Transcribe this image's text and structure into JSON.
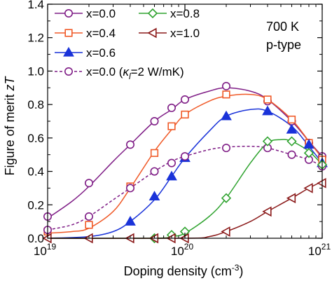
{
  "chart_data": {
    "type": "line",
    "xlabel": "Doping density (cm",
    "xlabel_sup": "-3",
    "xlabel_close": ")",
    "ylabel": "Figure of merit ",
    "ylabel_italic": "zT",
    "x_scale": "log",
    "xlim": [
      1e+19,
      1e+21
    ],
    "ylim": [
      0,
      1.4
    ],
    "x_ticks": [
      {
        "value": 1e+19,
        "base": "10",
        "exp": "19"
      },
      {
        "value": 1e+20,
        "base": "10",
        "exp": "20"
      },
      {
        "value": 1e+21,
        "base": "10",
        "exp": "21"
      }
    ],
    "y_ticks": [
      {
        "value": 0.0,
        "label": "0.0"
      },
      {
        "value": 0.2,
        "label": "0.2"
      },
      {
        "value": 0.4,
        "label": "0.4"
      },
      {
        "value": 0.6,
        "label": "0.6"
      },
      {
        "value": 0.8,
        "label": "0.8"
      },
      {
        "value": 1.0,
        "label": "1.0"
      },
      {
        "value": 1.2,
        "label": "1.2"
      },
      {
        "value": 1.4,
        "label": "1.4"
      }
    ],
    "grid": false,
    "legend_position": "top-left",
    "annotations": [
      "700 K",
      "p-type"
    ],
    "series": [
      {
        "name": "x=0.0",
        "color": "#7f1d86",
        "marker": "circle",
        "filled": false,
        "dashed": false,
        "legend_col": 0,
        "legend_row": 0,
        "curve": [
          [
            1e+19,
            0.12
          ],
          [
            1.5e+19,
            0.22
          ],
          [
            2e+19,
            0.31
          ],
          [
            3e+19,
            0.46
          ],
          [
            4e+19,
            0.56
          ],
          [
            6e+19,
            0.7
          ],
          [
            8e+19,
            0.77
          ],
          [
            1e+20,
            0.83
          ],
          [
            1.5e+20,
            0.88
          ],
          [
            2e+20,
            0.9
          ],
          [
            3e+20,
            0.88
          ],
          [
            4e+20,
            0.83
          ],
          [
            6e+20,
            0.7
          ],
          [
            8e+20,
            0.58
          ],
          [
            1e+21,
            0.49
          ]
        ],
        "points": [
          [
            1e+19,
            0.13
          ],
          [
            2e+19,
            0.33
          ],
          [
            4e+19,
            0.56
          ],
          [
            6e+19,
            0.7
          ],
          [
            8e+19,
            0.78
          ],
          [
            1e+20,
            0.83
          ],
          [
            2e+20,
            0.91
          ],
          [
            4e+20,
            0.82
          ],
          [
            6e+20,
            0.7
          ],
          [
            8e+20,
            0.57
          ],
          [
            1e+21,
            0.49
          ]
        ]
      },
      {
        "name": "x=0.4",
        "color": "#f05a28",
        "marker": "square",
        "filled": false,
        "dashed": false,
        "legend_col": 0,
        "legend_row": 1,
        "curve": [
          [
            1e+19,
            0.03
          ],
          [
            1.5e+19,
            0.04
          ],
          [
            2e+19,
            0.06
          ],
          [
            3e+19,
            0.16
          ],
          [
            4e+19,
            0.3
          ],
          [
            6e+19,
            0.52
          ],
          [
            8e+19,
            0.65
          ],
          [
            1e+20,
            0.74
          ],
          [
            1.5e+20,
            0.82
          ],
          [
            2e+20,
            0.85
          ],
          [
            3e+20,
            0.86
          ],
          [
            4e+20,
            0.83
          ],
          [
            6e+20,
            0.71
          ],
          [
            8e+20,
            0.58
          ],
          [
            1e+21,
            0.48
          ]
        ],
        "points": [
          [
            1e+19,
            0.04
          ],
          [
            2e+19,
            0.08
          ],
          [
            4e+19,
            0.31
          ],
          [
            6e+19,
            0.51
          ],
          [
            8e+19,
            0.67
          ],
          [
            1e+20,
            0.74
          ],
          [
            2e+20,
            0.86
          ],
          [
            4e+20,
            0.83
          ],
          [
            6e+20,
            0.71
          ],
          [
            8e+20,
            0.57
          ],
          [
            1e+21,
            0.47
          ]
        ]
      },
      {
        "name": "x=0.6",
        "color": "#1a33d9",
        "marker": "triangle-up",
        "filled": true,
        "dashed": false,
        "legend_col": 0,
        "legend_row": 2,
        "curve": [
          [
            1e+19,
            0.0
          ],
          [
            2e+19,
            0.01
          ],
          [
            3e+19,
            0.04
          ],
          [
            4e+19,
            0.1
          ],
          [
            6e+19,
            0.23
          ],
          [
            8e+19,
            0.37
          ],
          [
            1e+20,
            0.48
          ],
          [
            1.5e+20,
            0.64
          ],
          [
            2e+20,
            0.73
          ],
          [
            3e+20,
            0.77
          ],
          [
            4e+20,
            0.76
          ],
          [
            6e+20,
            0.67
          ],
          [
            8e+20,
            0.55
          ],
          [
            1e+21,
            0.45
          ]
        ],
        "points": [
          [
            4e+19,
            0.1
          ],
          [
            6e+19,
            0.25
          ],
          [
            8e+19,
            0.37
          ],
          [
            1e+20,
            0.48
          ],
          [
            2e+20,
            0.73
          ],
          [
            4e+20,
            0.76
          ],
          [
            6e+20,
            0.65
          ],
          [
            8e+20,
            0.56
          ],
          [
            1e+21,
            0.45
          ]
        ]
      },
      {
        "name": "x=0.0 (",
        "name_kappa": "κ",
        "name_sub": "l",
        "name_tail": "=2 W/mK)",
        "color": "#7f1d86",
        "marker": "circle",
        "filled": false,
        "dashed": true,
        "legend_col": 0,
        "legend_row": 3,
        "curve": [
          [
            1e+19,
            0.05
          ],
          [
            1.5e+19,
            0.08
          ],
          [
            2e+19,
            0.13
          ],
          [
            3e+19,
            0.23
          ],
          [
            4e+19,
            0.3
          ],
          [
            6e+19,
            0.4
          ],
          [
            8e+19,
            0.46
          ],
          [
            1e+20,
            0.49
          ],
          [
            1.5e+20,
            0.53
          ],
          [
            2e+20,
            0.545
          ],
          [
            3e+20,
            0.55
          ],
          [
            4e+20,
            0.54
          ],
          [
            6e+20,
            0.5
          ],
          [
            8e+20,
            0.47
          ],
          [
            1e+21,
            0.43
          ]
        ],
        "points": [
          [
            1e+19,
            0.05
          ],
          [
            2e+19,
            0.13
          ],
          [
            4e+19,
            0.3
          ],
          [
            6e+19,
            0.4
          ],
          [
            8e+19,
            0.45
          ],
          [
            1e+20,
            0.49
          ],
          [
            2e+20,
            0.54
          ],
          [
            4e+20,
            0.54
          ],
          [
            6e+20,
            0.5
          ],
          [
            8e+20,
            0.47
          ],
          [
            1e+21,
            0.43
          ]
        ]
      },
      {
        "name": "x=0.8",
        "color": "#2fa32f",
        "marker": "diamond",
        "filled": false,
        "dashed": false,
        "legend_col": 1,
        "legend_row": 0,
        "curve": [
          [
            1e+19,
            0.0
          ],
          [
            6e+19,
            0.0
          ],
          [
            8e+19,
            0.01
          ],
          [
            1e+20,
            0.03
          ],
          [
            1.5e+20,
            0.13
          ],
          [
            2e+20,
            0.24
          ],
          [
            3e+20,
            0.45
          ],
          [
            4e+20,
            0.57
          ],
          [
            5e+20,
            0.59
          ],
          [
            6e+20,
            0.58
          ],
          [
            8e+20,
            0.52
          ],
          [
            1e+21,
            0.44
          ]
        ],
        "points": [
          [
            6e+19,
            0.0
          ],
          [
            8e+19,
            0.02
          ],
          [
            1e+20,
            0.04
          ],
          [
            2e+20,
            0.24
          ],
          [
            4e+20,
            0.58
          ],
          [
            6e+20,
            0.58
          ],
          [
            8e+20,
            0.51
          ],
          [
            1e+21,
            0.44
          ]
        ]
      },
      {
        "name": "x=1.0",
        "color": "#8b1a1a",
        "marker": "triangle-left",
        "filled": false,
        "dashed": false,
        "legend_col": 1,
        "legend_row": 1,
        "curve": [
          [
            1e+19,
            0.0
          ],
          [
            1e+20,
            0.0
          ],
          [
            1.5e+20,
            0.01
          ],
          [
            2e+20,
            0.04
          ],
          [
            3e+20,
            0.1
          ],
          [
            4e+20,
            0.16
          ],
          [
            6e+20,
            0.24
          ],
          [
            8e+20,
            0.3
          ],
          [
            1e+21,
            0.34
          ]
        ],
        "points": [
          [
            1e+19,
            0.0
          ],
          [
            2e+19,
            0.0
          ],
          [
            4e+19,
            0.0
          ],
          [
            6e+19,
            0.0
          ],
          [
            8e+19,
            0.0
          ],
          [
            1e+20,
            0.0
          ],
          [
            2e+20,
            0.04
          ],
          [
            4e+20,
            0.16
          ],
          [
            6e+20,
            0.24
          ],
          [
            8e+20,
            0.3
          ],
          [
            1e+21,
            0.33
          ]
        ]
      }
    ]
  }
}
